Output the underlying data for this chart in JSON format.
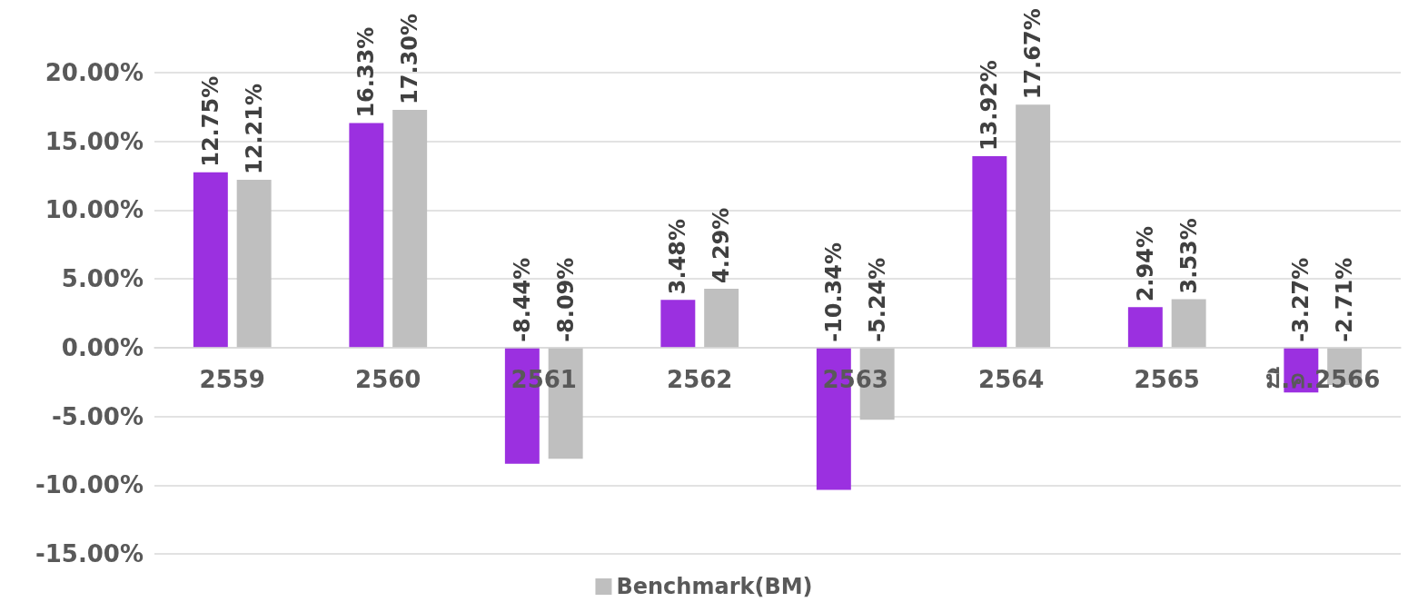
{
  "chart_data": {
    "type": "bar",
    "categories": [
      "2559",
      "2560",
      "2561",
      "2562",
      "2563",
      "2564",
      "2565",
      "มี.ค.2566"
    ],
    "series": [
      {
        "color": "#9b30e0",
        "values": [
          12.75,
          16.33,
          -8.44,
          3.48,
          -10.34,
          13.92,
          2.94,
          -3.27
        ],
        "value_labels": [
          "12.75%",
          "16.33%",
          "-8.44%",
          "3.48%",
          "-10.34%",
          "13.92%",
          "2.94%",
          "-3.27%"
        ]
      },
      {
        "name": "Benchmark(BM)",
        "color": "#bfbfbf",
        "values": [
          12.21,
          17.3,
          -8.09,
          4.29,
          -5.24,
          17.67,
          3.53,
          -2.71
        ],
        "value_labels": [
          "12.21%",
          "17.30%",
          "-8.09%",
          "4.29%",
          "-5.24%",
          "17.67%",
          "3.53%",
          "-2.71%"
        ]
      }
    ],
    "ylim": [
      -15,
      20
    ],
    "yticks": [
      {
        "value": -15,
        "label": "-15.00%"
      },
      {
        "value": -10,
        "label": "-10.00%"
      },
      {
        "value": -5,
        "label": "-5.00%"
      },
      {
        "value": 0,
        "label": "0.00%"
      },
      {
        "value": 5,
        "label": "5.00%"
      },
      {
        "value": 10,
        "label": "10.00%"
      },
      {
        "value": 15,
        "label": "15.00%"
      },
      {
        "value": 20,
        "label": "20.00%"
      }
    ],
    "grid": "y",
    "legend": "bottom"
  }
}
